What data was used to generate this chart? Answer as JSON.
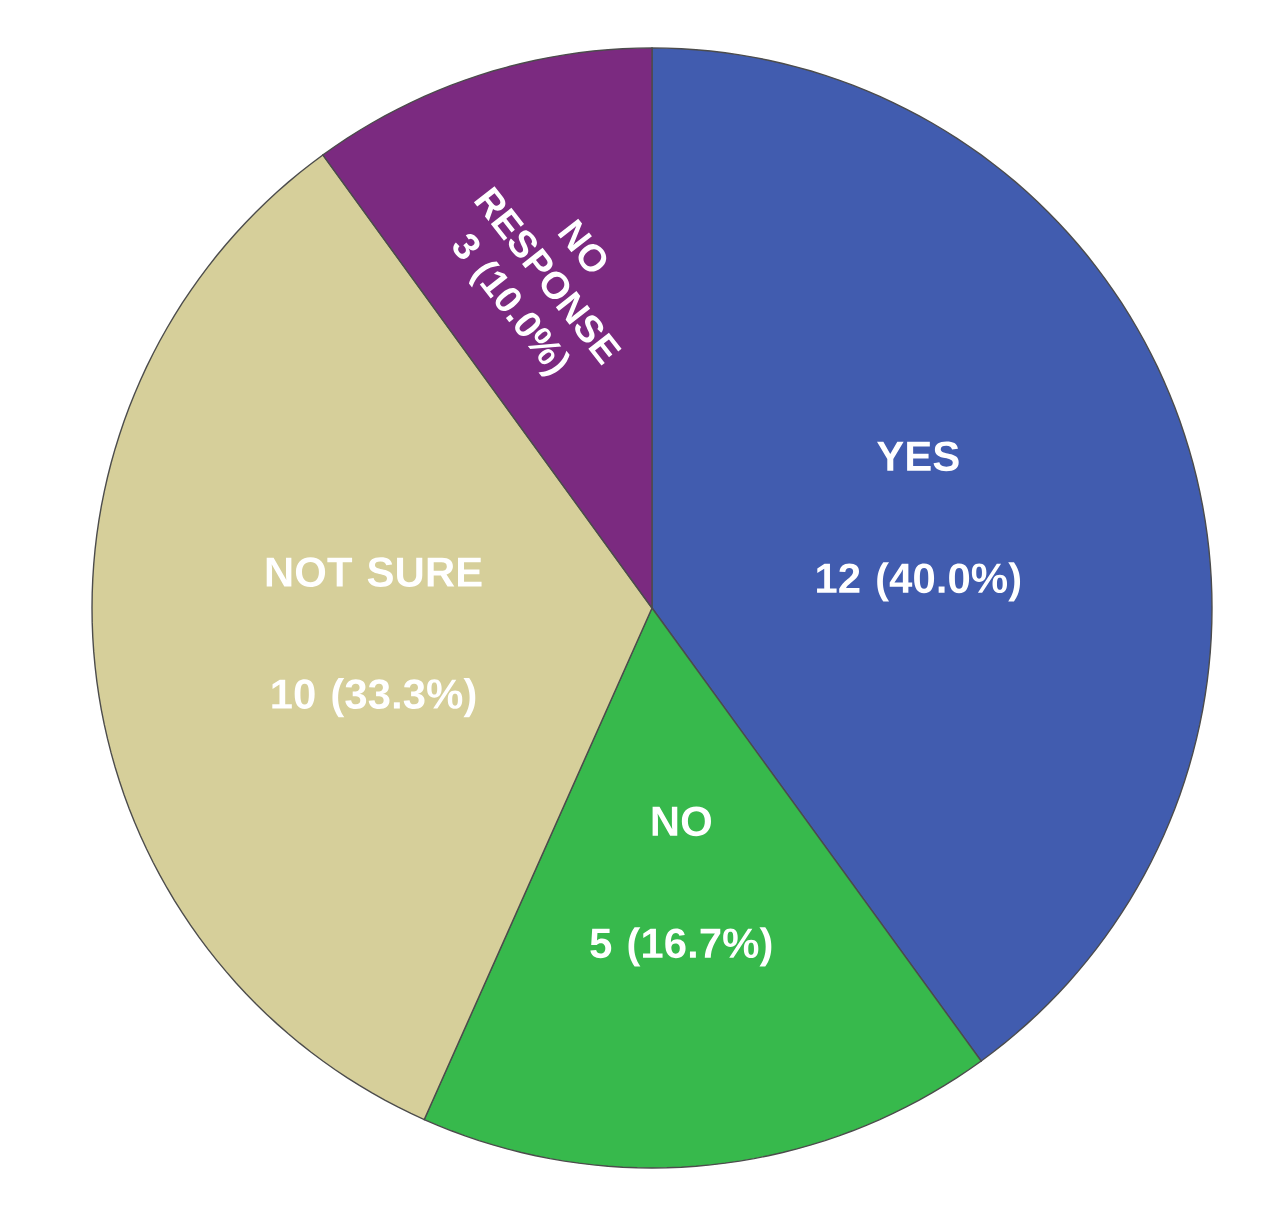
{
  "chart_data": {
    "type": "pie",
    "categories": [
      "YES",
      "NO",
      "NOT SURE",
      "NO RESPONSE"
    ],
    "values": [
      12,
      5,
      10,
      3
    ],
    "value_labels": [
      "12 (40.0%)",
      "5 (16.7%)",
      "10 (33.3%)",
      "3 (10.0%)"
    ],
    "colors": [
      "#415caf",
      "#37b94c",
      "#d6cf9a",
      "#7b2a80"
    ]
  }
}
